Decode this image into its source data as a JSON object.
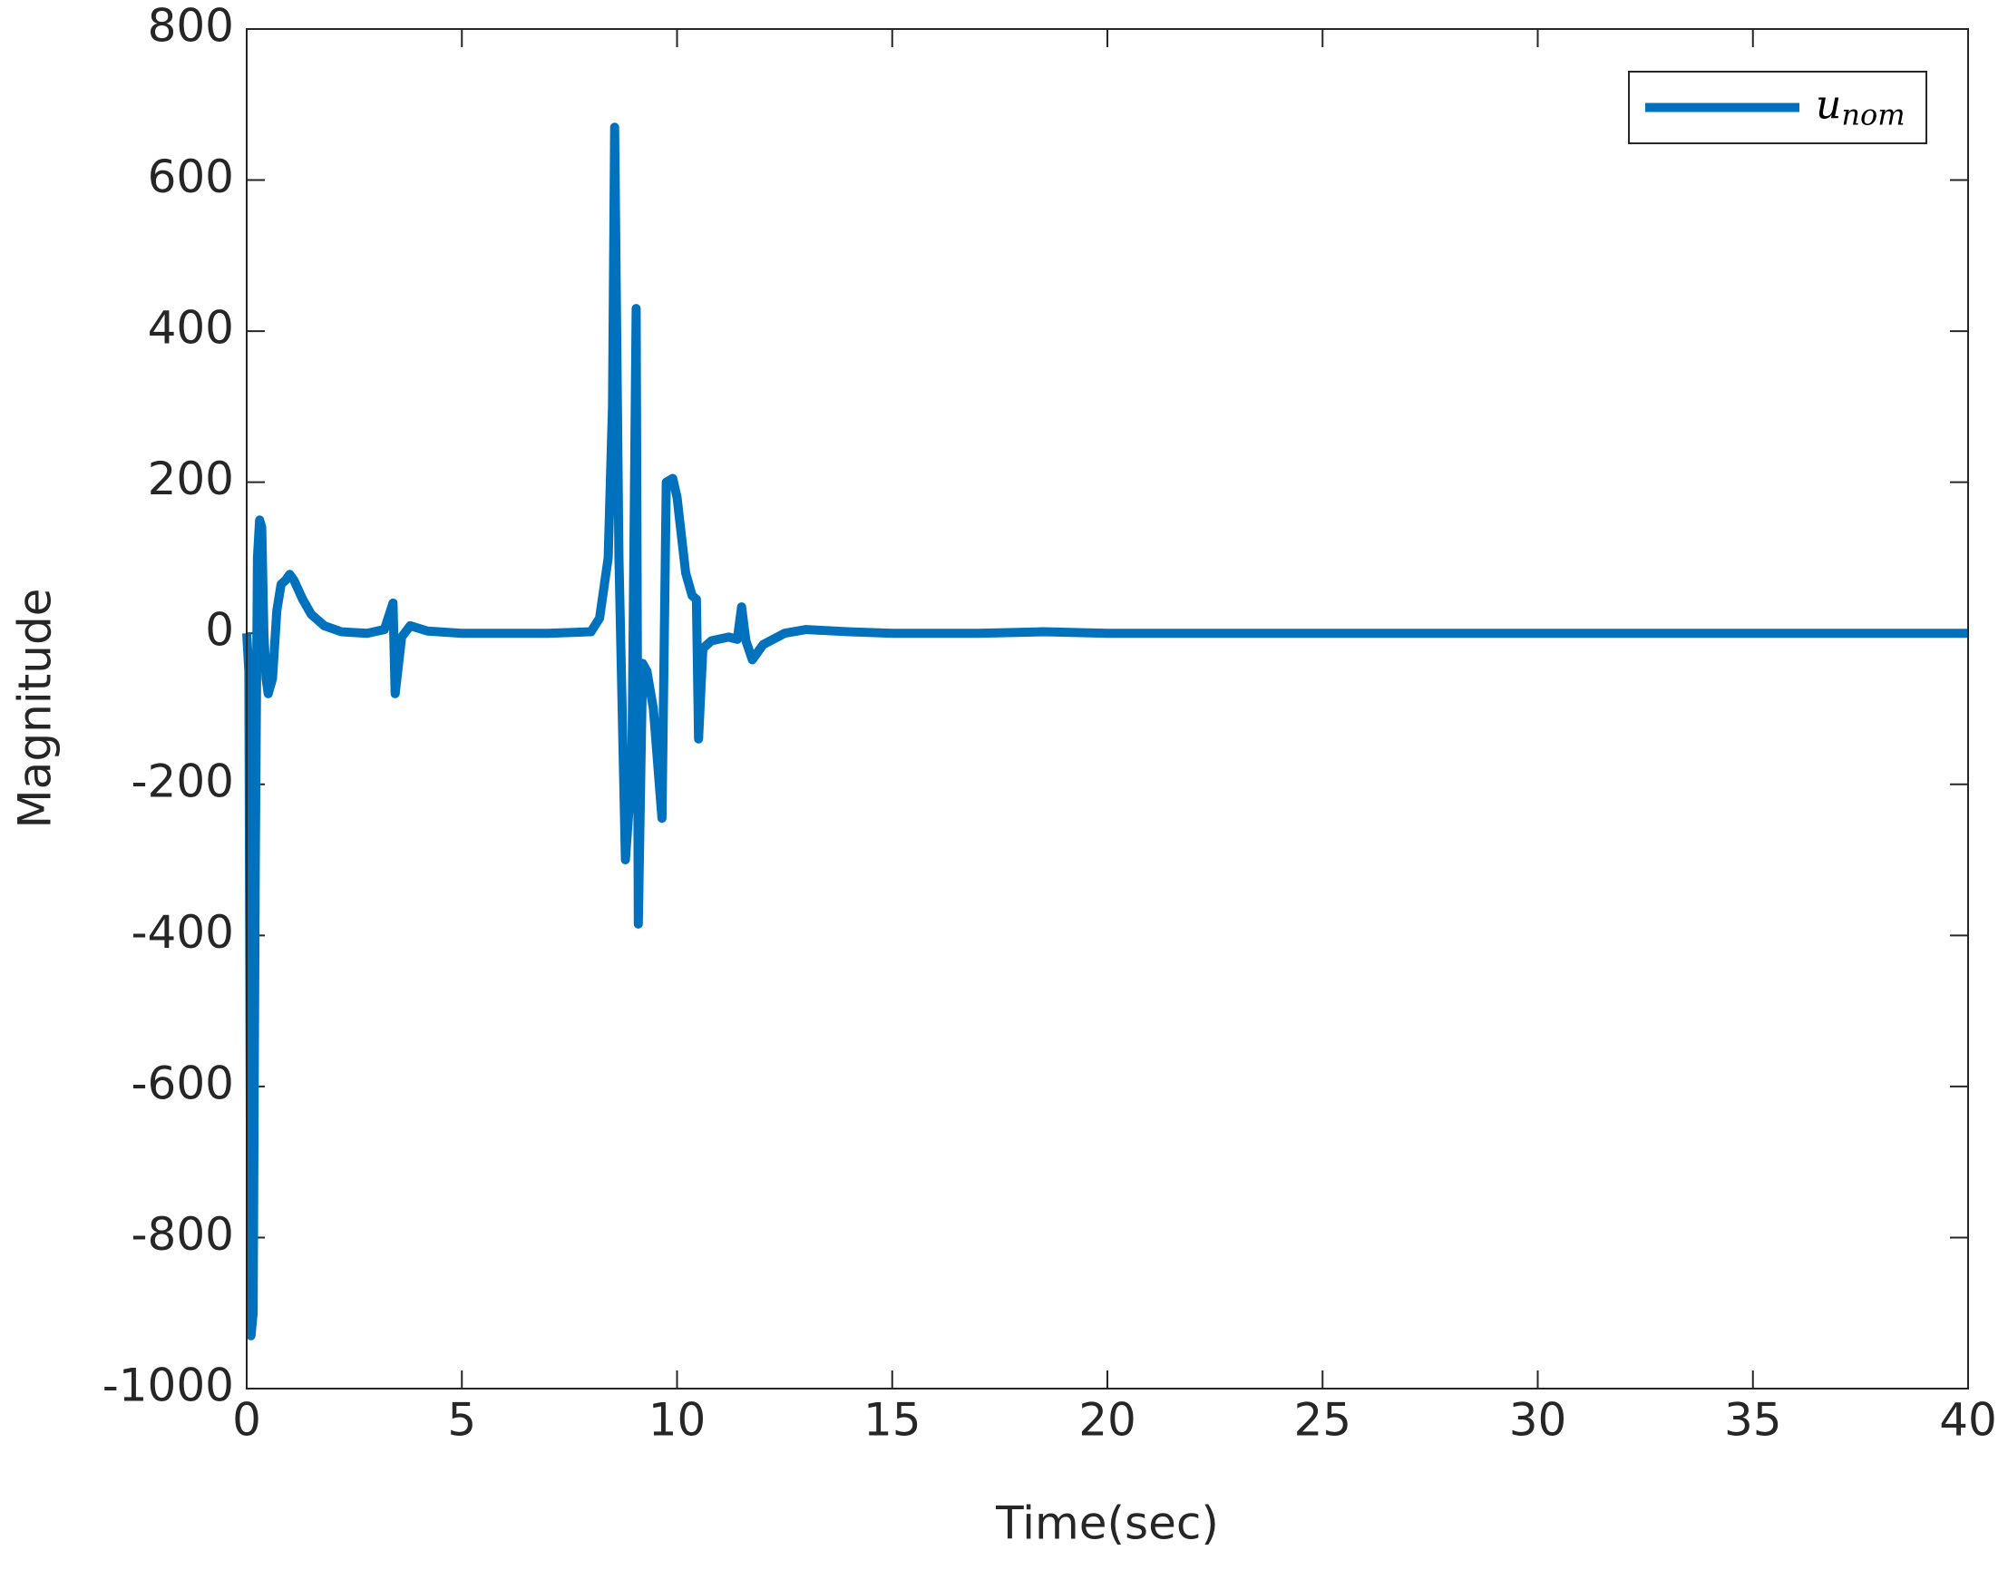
{
  "chart_data": {
    "type": "line",
    "xlabel": "Time(sec)",
    "ylabel": "Magnitude",
    "x": [
      0,
      0.05,
      0.1,
      0.15,
      0.2,
      0.25,
      0.3,
      0.35,
      0.4,
      0.45,
      0.5,
      0.6,
      0.7,
      0.8,
      0.9,
      1.0,
      1.1,
      1.3,
      1.5,
      1.8,
      2.2,
      2.8,
      3.2,
      3.4,
      3.45,
      3.6,
      3.8,
      4.2,
      5,
      7,
      8,
      8.2,
      8.4,
      8.5,
      8.55,
      8.65,
      8.8,
      8.95,
      9.05,
      9.1,
      9.2,
      9.3,
      9.45,
      9.65,
      9.75,
      9.9,
      10.0,
      10.2,
      10.35,
      10.45,
      10.5,
      10.6,
      10.8,
      11.2,
      11.4,
      11.5,
      11.6,
      11.75,
      12.0,
      12.5,
      13.0,
      14,
      15,
      17,
      18.5,
      20,
      40
    ],
    "series": [
      {
        "name": "u_nom",
        "color": "#0072bd",
        "values": [
          0,
          -50,
          -930,
          -900,
          -300,
          100,
          150,
          140,
          0,
          -60,
          -80,
          -60,
          30,
          65,
          70,
          78,
          70,
          45,
          25,
          10,
          2,
          0,
          5,
          40,
          -80,
          -5,
          10,
          3,
          0,
          0,
          2,
          20,
          100,
          300,
          670,
          100,
          -300,
          -180,
          430,
          -385,
          -40,
          -50,
          -100,
          -245,
          200,
          205,
          180,
          80,
          50,
          45,
          -140,
          -20,
          -10,
          -5,
          -8,
          35,
          -10,
          -35,
          -15,
          0,
          5,
          2,
          0,
          0,
          2,
          0,
          0
        ]
      }
    ],
    "xlim": [
      0,
      40
    ],
    "xticks": [
      0,
      5,
      10,
      15,
      20,
      25,
      30,
      35,
      40
    ],
    "ylim": [
      -1000,
      800
    ],
    "yticks": [
      -1000,
      -800,
      -600,
      -400,
      -200,
      0,
      200,
      400,
      600,
      800
    ],
    "grid": false,
    "legend": "upper right"
  }
}
